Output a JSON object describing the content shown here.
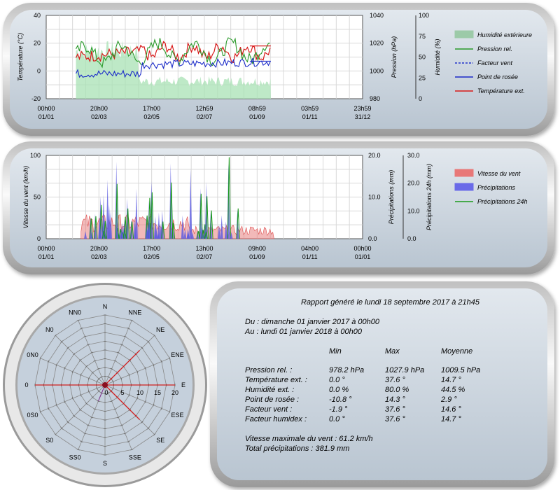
{
  "charts": [
    {
      "type": "line",
      "title": "",
      "ylabel_left": "Température (°C)",
      "ylabel_right1": "Pression (hPa)",
      "ylabel_right2": "Humidité (%)",
      "y_left_ticks": [
        "40",
        "20",
        "0",
        "-20"
      ],
      "y_right1_ticks": [
        "1040",
        "1020",
        "1000",
        "980"
      ],
      "y_right2_ticks": [
        "100",
        "75",
        "50",
        "25",
        "0"
      ],
      "x_ticks": [
        [
          "00h00",
          "01/01"
        ],
        [
          "20h00",
          "02/03"
        ],
        [
          "17h00",
          "02/05"
        ],
        [
          "12h59",
          "02/07"
        ],
        [
          "08h59",
          "01/09"
        ],
        [
          "03h59",
          "01/11"
        ],
        [
          "23h59",
          "31/12"
        ]
      ],
      "legend": [
        {
          "name": "Humidité extérieure",
          "color": "#9ccaa8",
          "style": "area"
        },
        {
          "name": "Pression rel.",
          "color": "#2a9a2a",
          "style": "line"
        },
        {
          "name": "Facteur vent",
          "color": "#2233cc",
          "style": "dash"
        },
        {
          "name": "Point de rosée",
          "color": "#1a2ac8",
          "style": "line"
        },
        {
          "name": "Température ext.",
          "color": "#d81818",
          "style": "line"
        }
      ],
      "ylim_left": [
        -20,
        40
      ],
      "ylim_pressure": [
        980,
        1040
      ],
      "ylim_humidity": [
        0,
        100
      ]
    },
    {
      "type": "bar",
      "ylabel_left": "Vitesse du vent (km/h)",
      "ylabel_right1": "Précipitations (mm)",
      "ylabel_right2": "Précipitations 24h (mm)",
      "y_left_ticks": [
        "100",
        "50",
        "0"
      ],
      "y_right1_ticks": [
        "20.0",
        "10.0",
        "0.0"
      ],
      "y_right2_ticks": [
        "30.0",
        "20.0",
        "10.0",
        "0.0"
      ],
      "x_ticks": [
        [
          "00h00",
          "01/01"
        ],
        [
          "20h00",
          "02/03"
        ],
        [
          "17h00",
          "02/05"
        ],
        [
          "13h00",
          "02/07"
        ],
        [
          "09h00",
          "01/09"
        ],
        [
          "04h00",
          "01/11"
        ],
        [
          "00h00",
          "01/01"
        ]
      ],
      "legend": [
        {
          "name": "Vitesse du vent",
          "color": "#e87878",
          "style": "area"
        },
        {
          "name": "Précipitations",
          "color": "#6a6ae8",
          "style": "area"
        },
        {
          "name": "Précipitations 24h",
          "color": "#1a9a1a",
          "style": "line"
        }
      ],
      "ylim_wind": [
        0,
        100
      ],
      "ylim_rain": [
        0,
        20
      ],
      "ylim_rain24": [
        0,
        30
      ]
    },
    {
      "type": "radar",
      "directions": [
        "N",
        "NNE",
        "NE",
        "ENE",
        "E",
        "ESE",
        "SE",
        "SSE",
        "S",
        "SSO",
        "SO",
        "OSO",
        "O",
        "ONO",
        "NO",
        "NNO"
      ],
      "left_labels": [
        "N",
        "NNE",
        "NE",
        "ENE",
        "E",
        "ESE",
        "SE",
        "SSE",
        "S",
        "SS0",
        "S0",
        "0S0",
        "0",
        "0N0",
        "N0",
        "NN0"
      ],
      "radial_ticks": [
        "0",
        "5",
        "10",
        "15",
        "20"
      ],
      "rmax": 20,
      "frequency_values": [
        0,
        0,
        0,
        0,
        4,
        0,
        0,
        0,
        0,
        5,
        0,
        0,
        6,
        0,
        0,
        0
      ],
      "max_wind_values": [
        0,
        0,
        14,
        0,
        20,
        0,
        14,
        0,
        0,
        0,
        0,
        0,
        20,
        0,
        0,
        0
      ]
    }
  ],
  "report": {
    "title": "Rapport généré le lundi 18 septembre 2017 à 21h45",
    "from": "Du : dimanche 01 janvier 2017 à 00h00",
    "to": "Au : lundi 01 janvier 2018 à 00h00",
    "headers": [
      "Min",
      "Max",
      "Moyenne"
    ],
    "rows": [
      [
        "Pression rel. :",
        "978.2 hPa",
        "1027.9 hPa",
        "1009.5 hPa"
      ],
      [
        "Température ext. :",
        "0.0 °",
        "37.6 °",
        "14.7 °"
      ],
      [
        "Humidité ext. :",
        "0.0 %",
        "80.0 %",
        "44.5 %"
      ],
      [
        "Point de rosée :",
        "-10.8 °",
        "14.3 °",
        "2.9 °"
      ],
      [
        "Facteur vent :",
        "-1.9 °",
        "37.6 °",
        "14.6 °"
      ],
      [
        "Facteur humidex :",
        "0.0 °",
        "37.6 °",
        "14.7 °"
      ]
    ],
    "max_wind": "Vitesse maximale du vent : 61.2 km/h",
    "total_rain": "Total précipitations : 381.9 mm"
  }
}
